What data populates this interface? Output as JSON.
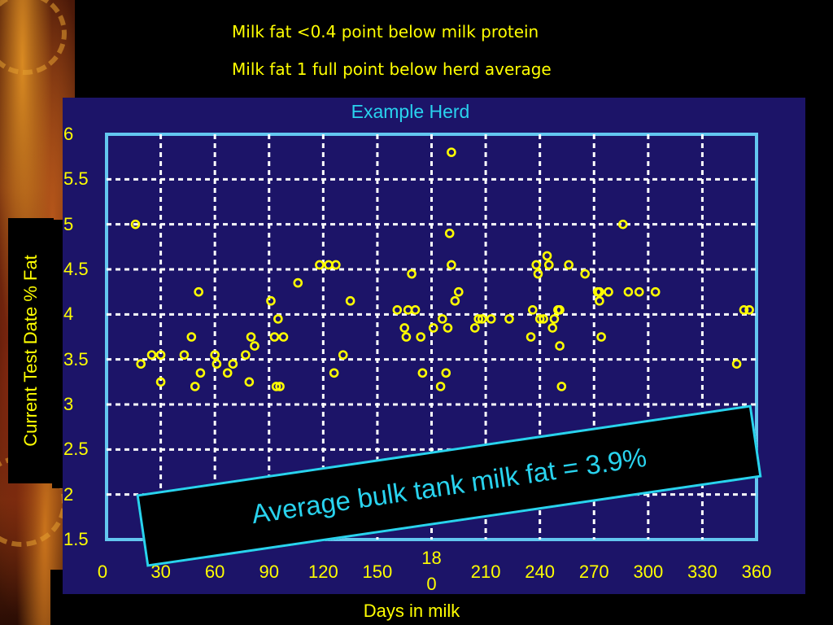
{
  "slide": {
    "subtitle_1": "Milk fat <0.4 point below milk protein",
    "subtitle_2": "Milk fat 1 full point below herd average"
  },
  "colors": {
    "panel": "#1c1468",
    "grid": "#ffffff",
    "frame": "#63c7f0",
    "points": "#ffff00",
    "accent": "#29d3ee"
  },
  "annotation": {
    "text": "Average bulk tank milk fat = 3.9%"
  },
  "chart_data": {
    "type": "scatter",
    "title": "Example Herd",
    "xlabel": "Days in milk",
    "ylabel": "Current Test Date % Fat",
    "xlim": [
      0,
      360
    ],
    "ylim": [
      1.5,
      6
    ],
    "x_ticks": [
      "0",
      "30",
      "60",
      "90",
      "120",
      "150",
      "18\n0",
      "210",
      "240",
      "270",
      "300",
      "330",
      "360"
    ],
    "y_ticks": [
      "6",
      "5.5",
      "5",
      "4.5",
      "4",
      "3.5",
      "3",
      "2.5",
      "2",
      "1.5"
    ],
    "grid": true,
    "series": [
      {
        "x": [
          16,
          19,
          25,
          30,
          30,
          43,
          47,
          49,
          51,
          52,
          60,
          61,
          67,
          70,
          77,
          80,
          79,
          82,
          91,
          93,
          94,
          95,
          96,
          98,
          106,
          118,
          123,
          126,
          127,
          131,
          135,
          161,
          165,
          167,
          166,
          169,
          171,
          175,
          174,
          181,
          185,
          186,
          188,
          189,
          191,
          190,
          191,
          193,
          195,
          204,
          206,
          208,
          213,
          223,
          235,
          236,
          238,
          239,
          240,
          242,
          244,
          245,
          247,
          248,
          250,
          251,
          252,
          251,
          256,
          265,
          272,
          273,
          273,
          274,
          278,
          286,
          289,
          295,
          304,
          349,
          353,
          356
        ],
        "y": [
          5.0,
          3.45,
          3.55,
          3.55,
          3.25,
          3.55,
          3.75,
          3.2,
          4.25,
          3.35,
          3.55,
          3.45,
          3.35,
          3.45,
          3.55,
          3.75,
          3.25,
          3.65,
          4.15,
          3.75,
          3.2,
          3.95,
          3.2,
          3.75,
          4.35,
          4.55,
          4.55,
          3.35,
          4.55,
          3.55,
          4.15,
          4.05,
          3.85,
          4.05,
          3.75,
          4.45,
          4.05,
          3.35,
          3.75,
          3.85,
          3.2,
          3.95,
          3.35,
          3.85,
          5.8,
          4.9,
          4.55,
          4.15,
          4.25,
          3.85,
          3.95,
          3.95,
          3.95,
          3.95,
          3.75,
          4.05,
          4.55,
          4.45,
          3.95,
          3.95,
          4.65,
          4.55,
          3.85,
          3.95,
          4.05,
          3.65,
          3.2,
          4.05,
          4.55,
          4.45,
          4.25,
          4.25,
          4.15,
          3.75,
          4.25,
          5.0,
          4.25,
          4.25,
          4.25,
          3.45,
          4.05,
          4.05
        ]
      }
    ]
  }
}
